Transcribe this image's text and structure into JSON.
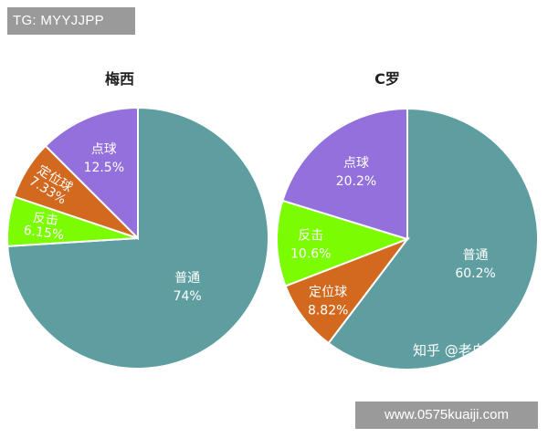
{
  "top_tag": "TG: MYYJJPP",
  "bottom_tag": "www.0575kuaiji.com",
  "watermark": "知乎 @老白Walt",
  "colors": {
    "normal": "#5f9ea0",
    "set_piece": "#d2691e",
    "counter": "#7cfc00",
    "penalty": "#9370db"
  },
  "chart_data": [
    {
      "type": "pie",
      "title": "梅西",
      "slices": [
        {
          "label": "普通",
          "value": 74,
          "value_text": "74%",
          "color": "#5f9ea0"
        },
        {
          "label": "反击",
          "value": 6.15,
          "value_text": "6.15%",
          "color": "#7cfc00"
        },
        {
          "label": "定位球",
          "value": 7.33,
          "value_text": "7.33%",
          "color": "#d2691e"
        },
        {
          "label": "点球",
          "value": 12.5,
          "value_text": "12.5%",
          "color": "#9370db"
        }
      ]
    },
    {
      "type": "pie",
      "title": "C罗",
      "slices": [
        {
          "label": "普通",
          "value": 60.2,
          "value_text": "60.2%",
          "color": "#5f9ea0"
        },
        {
          "label": "定位球",
          "value": 8.82,
          "value_text": "8.82%",
          "color": "#d2691e"
        },
        {
          "label": "反击",
          "value": 10.6,
          "value_text": "10.6%",
          "color": "#7cfc00"
        },
        {
          "label": "点球",
          "value": 20.2,
          "value_text": "20.2%",
          "color": "#9370db"
        }
      ]
    }
  ]
}
